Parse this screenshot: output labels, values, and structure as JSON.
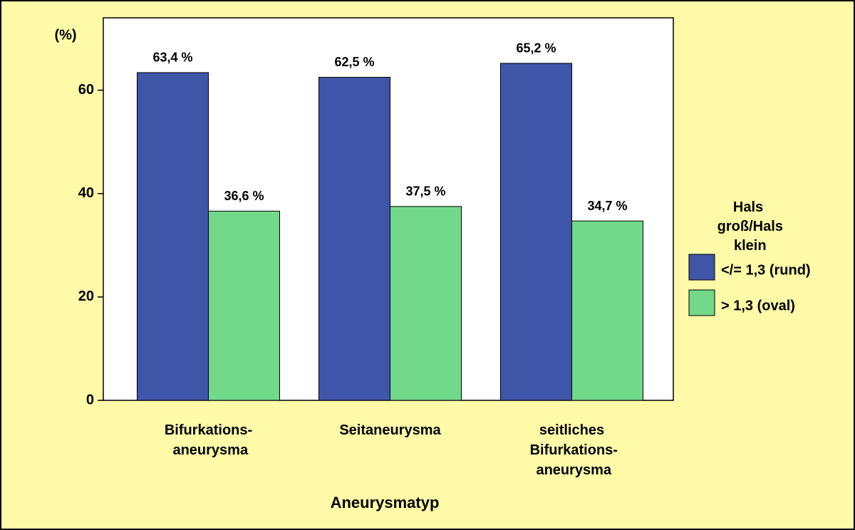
{
  "chart_data": {
    "type": "bar",
    "y_label": "(%)",
    "x_label": "Aneurysmatyp",
    "categories": [
      "Bifurkations- aneurysma",
      "Seitaneurysma",
      "seitliches Bifurkations- aneurysma"
    ],
    "series": [
      {
        "name": "</= 1,3 (rund)",
        "color": "#3f55a8",
        "values": [
          63.4,
          62.5,
          65.2
        ],
        "value_labels": [
          "63,4 %",
          "62,5 %",
          "65,2 %"
        ]
      },
      {
        "name": "> 1,3 (oval)",
        "color": "#72d98a",
        "values": [
          36.6,
          37.5,
          34.7
        ],
        "value_labels": [
          "36,6 %",
          "37,5 %",
          "34,7 %"
        ]
      }
    ],
    "legend_title": "Hals groß/Hals klein",
    "legend": "right",
    "ylim": [
      0,
      74
    ],
    "yticks": [
      0,
      20,
      40,
      60
    ],
    "grid": false
  }
}
